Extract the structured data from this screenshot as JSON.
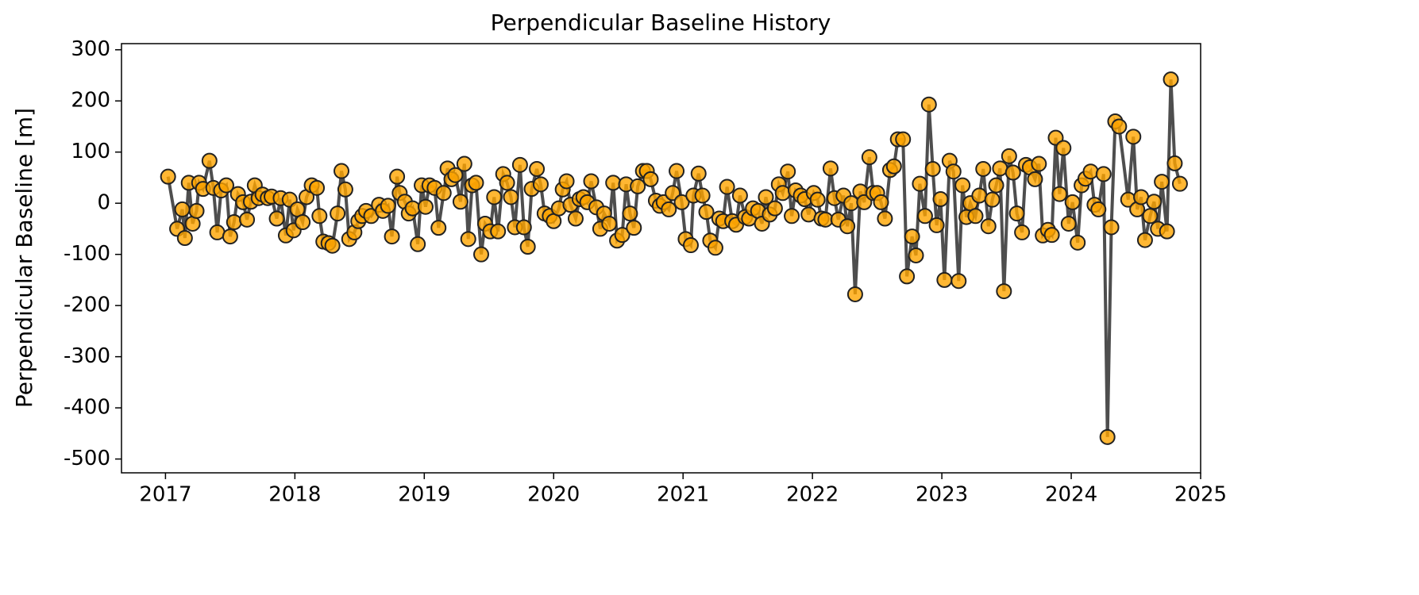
{
  "chart_data": {
    "type": "line",
    "title": "Perpendicular Baseline History",
    "y_label": "Perpendicular Baseline [m]",
    "xlim": [
      2016.66,
      2025.0
    ],
    "xticks": [
      2017,
      2018,
      2019,
      2020,
      2021,
      2022,
      2023,
      2024,
      2025
    ],
    "ylim": [
      -527,
      312
    ],
    "yticks": [
      -500,
      -400,
      -300,
      -200,
      -100,
      0,
      100,
      200,
      300
    ],
    "series": [
      {
        "color": "#ffa500",
        "line_color": "#444444",
        "x": [
          2017.02,
          2017.09,
          2017.13,
          2017.15,
          2017.18,
          2017.21,
          2017.24,
          2017.26,
          2017.29,
          2017.34,
          2017.37,
          2017.4,
          2017.43,
          2017.47,
          2017.5,
          2017.53,
          2017.56,
          2017.6,
          2017.63,
          2017.66,
          2017.69,
          2017.72,
          2017.75,
          2017.79,
          2017.82,
          2017.86,
          2017.89,
          2017.93,
          2017.96,
          2017.99,
          2018.02,
          2018.06,
          2018.09,
          2018.13,
          2018.17,
          2018.19,
          2018.22,
          2018.26,
          2018.29,
          2018.33,
          2018.36,
          2018.39,
          2018.42,
          2018.46,
          2018.49,
          2018.52,
          2018.55,
          2018.59,
          2018.65,
          2018.68,
          2018.72,
          2018.75,
          2018.79,
          2018.81,
          2018.85,
          2018.88,
          2018.91,
          2018.95,
          2018.98,
          2019.01,
          2019.04,
          2019.08,
          2019.11,
          2019.15,
          2019.18,
          2019.21,
          2019.24,
          2019.28,
          2019.31,
          2019.34,
          2019.37,
          2019.4,
          2019.44,
          2019.47,
          2019.51,
          2019.54,
          2019.57,
          2019.61,
          2019.64,
          2019.67,
          2019.7,
          2019.74,
          2019.77,
          2019.8,
          2019.83,
          2019.87,
          2019.9,
          2019.93,
          2019.97,
          2020.0,
          2020.04,
          2020.07,
          2020.1,
          2020.13,
          2020.17,
          2020.2,
          2020.23,
          2020.26,
          2020.29,
          2020.33,
          2020.36,
          2020.39,
          2020.43,
          2020.46,
          2020.49,
          2020.53,
          2020.56,
          2020.59,
          2020.62,
          2020.65,
          2020.69,
          2020.72,
          2020.75,
          2020.79,
          2020.82,
          2020.85,
          2020.89,
          2020.92,
          2020.95,
          2020.99,
          2021.02,
          2021.06,
          2021.08,
          2021.12,
          2021.15,
          2021.18,
          2021.21,
          2021.25,
          2021.28,
          2021.31,
          2021.34,
          2021.38,
          2021.41,
          2021.44,
          2021.48,
          2021.51,
          2021.54,
          2021.58,
          2021.61,
          2021.64,
          2021.67,
          2021.71,
          2021.74,
          2021.77,
          2021.81,
          2021.84,
          2021.87,
          2021.91,
          2021.94,
          2021.97,
          2022.01,
          2022.04,
          2022.07,
          2022.1,
          2022.14,
          2022.17,
          2022.2,
          2022.24,
          2022.27,
          2022.3,
          2022.33,
          2022.37,
          2022.4,
          2022.44,
          2022.47,
          2022.5,
          2022.53,
          2022.56,
          2022.6,
          2022.63,
          2022.66,
          2022.7,
          2022.73,
          2022.77,
          2022.8,
          2022.83,
          2022.87,
          2022.9,
          2022.93,
          2022.96,
          2022.99,
          2023.02,
          2023.06,
          2023.09,
          2023.13,
          2023.16,
          2023.19,
          2023.22,
          2023.26,
          2023.29,
          2023.32,
          2023.36,
          2023.39,
          2023.42,
          2023.45,
          2023.48,
          2023.52,
          2023.55,
          2023.58,
          2023.62,
          2023.65,
          2023.68,
          2023.72,
          2023.75,
          2023.78,
          2023.82,
          2023.85,
          2023.88,
          2023.91,
          2023.94,
          2023.98,
          2024.01,
          2024.05,
          2024.08,
          2024.11,
          2024.15,
          2024.18,
          2024.21,
          2024.25,
          2024.28,
          2024.31,
          2024.34,
          2024.37,
          2024.44,
          2024.48,
          2024.51,
          2024.54,
          2024.57,
          2024.61,
          2024.64,
          2024.67,
          2024.7,
          2024.74,
          2024.77,
          2024.8,
          2024.84
        ],
        "values": [
          52,
          -50,
          -12,
          -68,
          40,
          -40,
          -15,
          40,
          28,
          83,
          30,
          -57,
          25,
          35,
          -65,
          -37,
          18,
          2,
          -32,
          3,
          35,
          10,
          17,
          10,
          13,
          -30,
          10,
          -63,
          7,
          -53,
          -12,
          -37,
          12,
          35,
          30,
          -25,
          -75,
          -78,
          -83,
          -20,
          63,
          27,
          -70,
          -57,
          -35,
          -25,
          -15,
          -25,
          -3,
          -15,
          -5,
          -65,
          52,
          20,
          3,
          -20,
          -10,
          -80,
          35,
          -7,
          35,
          30,
          -48,
          20,
          68,
          47,
          55,
          3,
          77,
          -70,
          35,
          40,
          -100,
          -40,
          -55,
          12,
          -55,
          57,
          40,
          12,
          -47,
          75,
          -47,
          -85,
          28,
          67,
          37,
          -20,
          -25,
          -35,
          -10,
          27,
          43,
          -3,
          -30,
          8,
          12,
          2,
          43,
          -8,
          -50,
          -20,
          -40,
          40,
          -73,
          -62,
          37,
          -20,
          -48,
          33,
          63,
          63,
          47,
          5,
          -5,
          2,
          -12,
          20,
          63,
          2,
          -70,
          -82,
          15,
          58,
          15,
          -17,
          -73,
          -87,
          -30,
          -35,
          32,
          -35,
          -42,
          15,
          -27,
          -30,
          -10,
          -15,
          -40,
          12,
          -22,
          -10,
          37,
          20,
          62,
          -25,
          25,
          15,
          8,
          -22,
          20,
          7,
          -30,
          -32,
          68,
          10,
          -32,
          15,
          -45,
          0,
          -178,
          23,
          2,
          90,
          20,
          20,
          2,
          -30,
          65,
          72,
          125,
          125,
          -143,
          -65,
          -102,
          38,
          -25,
          193,
          67,
          -43,
          8,
          -150,
          83,
          62,
          -152,
          35,
          -27,
          0,
          -25,
          15,
          67,
          -45,
          7,
          35,
          68,
          -172,
          92,
          60,
          -20,
          -57,
          75,
          70,
          47,
          77,
          -63,
          -52,
          -62,
          128,
          18,
          108,
          -40,
          2,
          -77,
          35,
          48,
          62,
          -3,
          -12,
          57,
          -457,
          -47,
          160,
          150,
          7,
          130,
          -12,
          12,
          -72,
          -25,
          3,
          -50,
          42,
          -55,
          242,
          78,
          38
        ]
      }
    ]
  }
}
